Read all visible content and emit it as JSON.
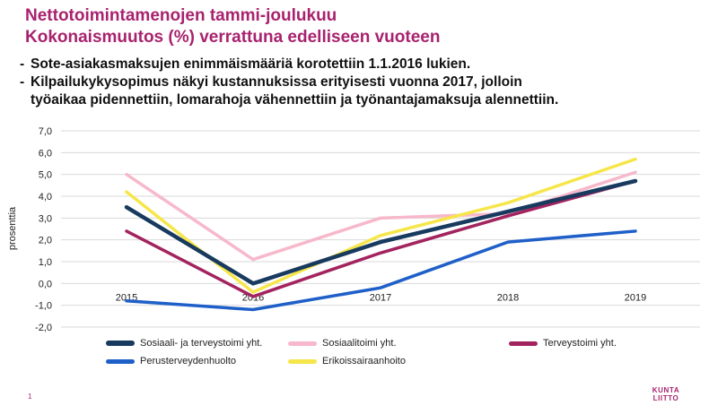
{
  "title_lines": [
    "Nettotoimintamenojen tammi-joulukuu",
    "Kokonaismuutos (%) verrattuna edelliseen vuoteen"
  ],
  "bullets": {
    "b1": "Sote-asiakasmaksujen enimmäismääriä korotettiin 1.1.2016 lukien.",
    "b2_line1": "Kilpailukykysopimus näkyi kustannuksissa erityisesti vuonna 2017, jolloin",
    "b2_line2": "työaikaa pidennettiin, lomarahoja vähennettiin ja työnantajamaksuja alennettiin."
  },
  "chart_data": {
    "type": "line",
    "x": [
      "2015",
      "2016",
      "2017",
      "2018",
      "2019"
    ],
    "ylabel": "prosenttia",
    "ylim": [
      -2,
      7
    ],
    "yticks": [
      -2,
      -1,
      0,
      1,
      2,
      3,
      4,
      5,
      6,
      7
    ],
    "ytick_labels": [
      "-2,0",
      "-1,0",
      "0,0",
      "1,0",
      "2,0",
      "3,0",
      "4,0",
      "5,0",
      "6,0",
      "7,0"
    ],
    "grid": true,
    "legend_position": "bottom",
    "series": [
      {
        "name": "Sosiaali- ja terveystoimi yht.",
        "color": "#173a5e",
        "values": [
          3.5,
          0.0,
          1.9,
          3.3,
          4.7
        ]
      },
      {
        "name": "Sosiaalitoimi yht.",
        "color": "#f7b8cb",
        "values": [
          5.0,
          1.1,
          3.0,
          3.2,
          5.1
        ]
      },
      {
        "name": "Terveystoimi yht.",
        "color": "#a3235f",
        "values": [
          2.4,
          -0.6,
          1.4,
          3.1,
          4.7
        ]
      },
      {
        "name": "Perusterveydenhuolto",
        "color": "#1f5fc8",
        "values": [
          -0.8,
          -1.2,
          -0.2,
          1.9,
          2.4
        ]
      },
      {
        "name": "Erikoissairaanhoito",
        "color": "#f6e64a",
        "values": [
          4.2,
          -0.4,
          2.2,
          3.7,
          5.7
        ]
      }
    ]
  },
  "footer": {
    "page_number": "1",
    "logo_line1": "KUNTA",
    "logo_line2": "LIITTO"
  }
}
